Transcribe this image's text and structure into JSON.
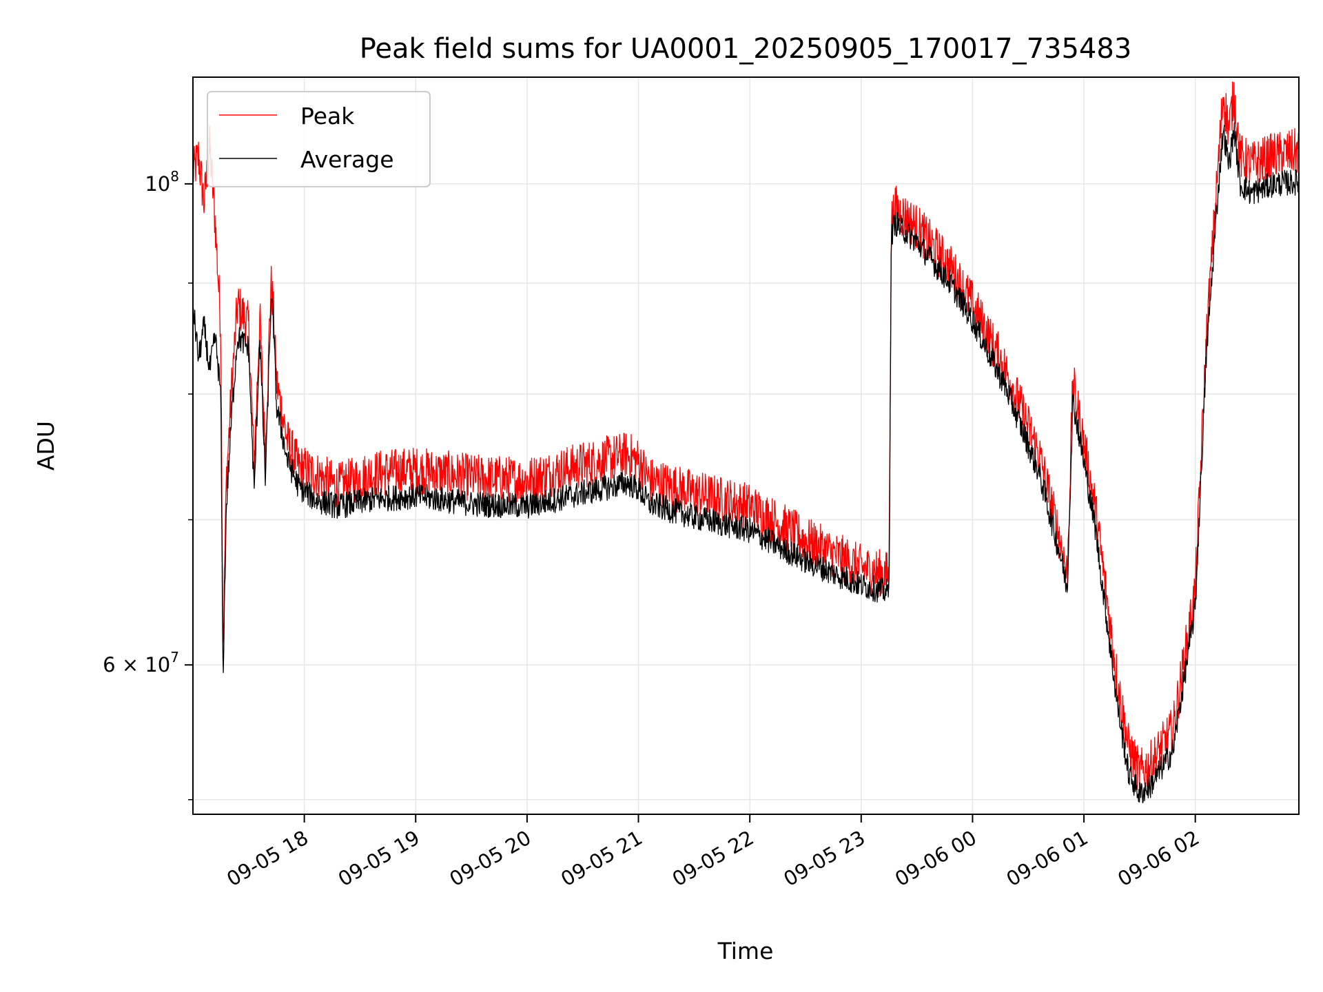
{
  "chart_data": {
    "type": "line",
    "title": "Peak field sums for UA0001_20250905_170017_735483",
    "xlabel": "Time",
    "ylabel": "ADU",
    "yscale": "log",
    "grid": true,
    "legend_position": "top-left",
    "x_unit": "hours since 2025-09-05 00:00",
    "xlim": [
      17.0,
      26.93
    ],
    "ylim": [
      51200000,
      112000000
    ],
    "x_ticks": [
      {
        "value": 18,
        "label": "09-05 18"
      },
      {
        "value": 19,
        "label": "09-05 19"
      },
      {
        "value": 20,
        "label": "09-05 20"
      },
      {
        "value": 21,
        "label": "09-05 21"
      },
      {
        "value": 22,
        "label": "09-05 22"
      },
      {
        "value": 23,
        "label": "09-05 23"
      },
      {
        "value": 24,
        "label": "09-06 00"
      },
      {
        "value": 25,
        "label": "09-06 01"
      },
      {
        "value": 26,
        "label": "09-06 02"
      }
    ],
    "y_major_ticks": [
      {
        "value": 100000000,
        "base": "10",
        "exp": "8",
        "prefix": ""
      },
      {
        "value": 60000000,
        "base": "10",
        "exp": "7",
        "prefix": "6 × "
      }
    ],
    "y_minor_ticks": [
      52000000,
      70000000,
      80000000,
      90000000
    ],
    "series": [
      {
        "name": "Peak",
        "color": "#ff0000",
        "noise": 0.011,
        "x": [
          17.0,
          17.05,
          17.1,
          17.15,
          17.2,
          17.25,
          17.27,
          17.3,
          17.35,
          17.4,
          17.5,
          17.55,
          17.6,
          17.65,
          17.7,
          17.72,
          17.75,
          17.85,
          17.95,
          18.1,
          18.3,
          18.6,
          19.0,
          19.5,
          20.0,
          20.5,
          20.9,
          21.0,
          21.1,
          21.5,
          22.0,
          22.5,
          23.0,
          23.25,
          23.27,
          23.3,
          23.5,
          23.8,
          24.0,
          24.3,
          24.6,
          24.8,
          24.85,
          24.9,
          25.1,
          25.3,
          25.4,
          25.5,
          25.6,
          25.8,
          26.0,
          26.1,
          26.2,
          26.25,
          26.3,
          26.35,
          26.4,
          26.5,
          26.7,
          26.93
        ],
        "y": [
          101000000,
          103000000,
          98000000,
          104000000,
          96000000,
          86000000,
          61000000,
          73000000,
          81000000,
          88000000,
          86000000,
          74000000,
          87000000,
          75000000,
          90000000,
          88000000,
          81000000,
          76000000,
          74000000,
          73500000,
          72500000,
          73500000,
          73800000,
          73200000,
          73000000,
          74200000,
          75000000,
          74500000,
          73000000,
          72000000,
          71000000,
          68500000,
          66500000,
          66000000,
          96000000,
          97500000,
          95500000,
          91500000,
          88000000,
          82000000,
          75000000,
          68000000,
          66000000,
          81000000,
          71000000,
          59000000,
          55000000,
          53500000,
          54000000,
          56000000,
          65000000,
          85000000,
          101000000,
          110000000,
          106000000,
          110000000,
          103000000,
          102000000,
          103000000,
          103500000
        ]
      },
      {
        "name": "Average",
        "color": "#000000",
        "noise": 0.006,
        "x": [
          17.0,
          17.05,
          17.1,
          17.15,
          17.2,
          17.25,
          17.27,
          17.3,
          17.35,
          17.4,
          17.5,
          17.55,
          17.6,
          17.65,
          17.7,
          17.72,
          17.75,
          17.85,
          17.95,
          18.1,
          18.3,
          18.6,
          19.0,
          19.5,
          20.0,
          20.5,
          20.9,
          21.0,
          21.1,
          21.5,
          22.0,
          22.5,
          23.0,
          23.25,
          23.27,
          23.3,
          23.5,
          23.8,
          24.0,
          24.3,
          24.6,
          24.8,
          24.85,
          24.9,
          25.1,
          25.3,
          25.4,
          25.5,
          25.6,
          25.8,
          26.0,
          26.1,
          26.2,
          26.25,
          26.3,
          26.35,
          26.4,
          26.5,
          26.7,
          26.93
        ],
        "y": [
          88000000,
          83000000,
          86000000,
          82000000,
          85000000,
          80000000,
          59000000,
          71000000,
          78500000,
          85000000,
          84000000,
          72000000,
          85000000,
          73000000,
          88000000,
          87000000,
          79000000,
          74500000,
          72500000,
          71500000,
          71000000,
          71500000,
          71800000,
          71200000,
          71000000,
          72000000,
          72800000,
          72300000,
          71200000,
          70200000,
          69200000,
          67000000,
          65300000,
          64800000,
          94500000,
          96000000,
          94000000,
          90000000,
          86500000,
          80500000,
          73500000,
          67000000,
          65000000,
          79500000,
          69500000,
          57500000,
          53500000,
          52300000,
          52800000,
          54800000,
          63800000,
          83500000,
          98500000,
          106000000,
          102000000,
          106000000,
          100000000,
          99000000,
          100000000,
          100200000
        ]
      }
    ]
  }
}
